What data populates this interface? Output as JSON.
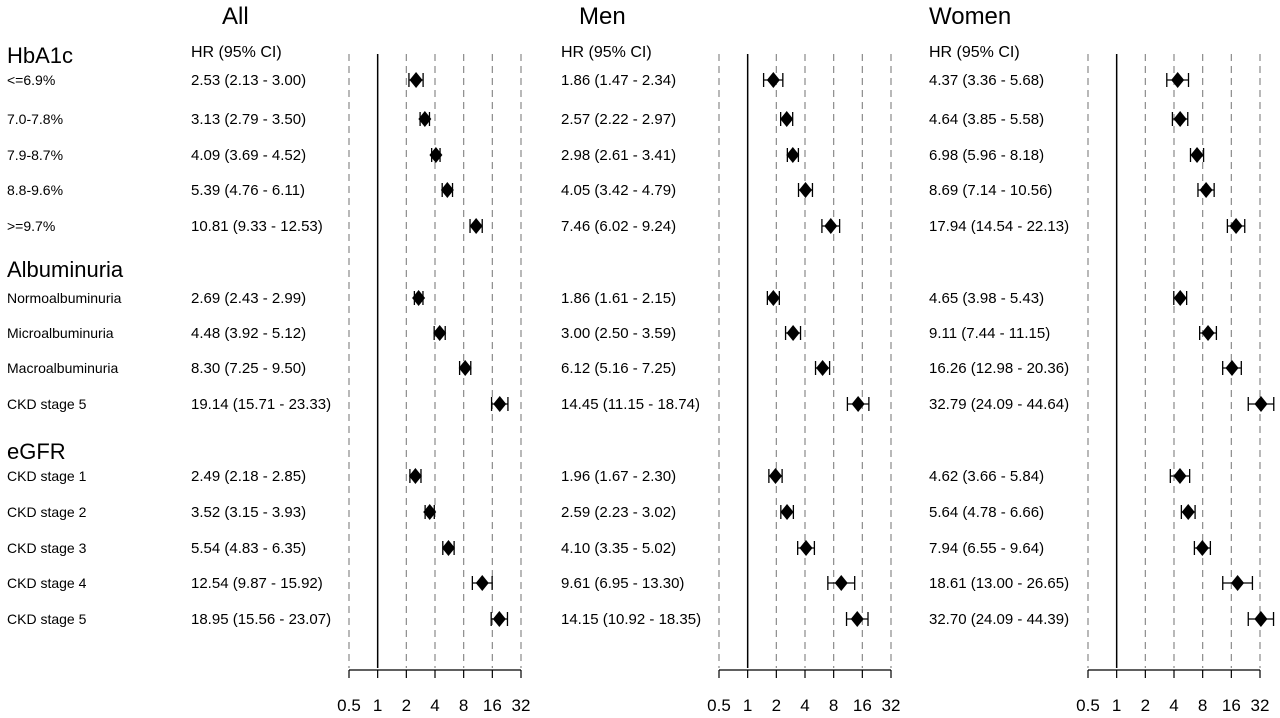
{
  "chart_data": {
    "type": "forest",
    "x_scale": "log2",
    "xlim": [
      0.5,
      32
    ],
    "reference_line": 1,
    "ticks": [
      0.5,
      1,
      2,
      4,
      8,
      16,
      32
    ],
    "tick_labels": [
      "0.5",
      "1",
      "2",
      "4",
      "8",
      "16",
      "32"
    ],
    "gridlines": [
      0.5,
      2,
      4,
      8,
      16,
      32
    ],
    "ci_header": "HR (95% CI)",
    "panels": [
      {
        "title": "All",
        "hr_text": [
          "2.53 (2.13 - 3.00)",
          "3.13 (2.79 - 3.50)",
          "4.09 (3.69 - 4.52)",
          "5.39 (4.76 - 6.11)",
          "10.81 (9.33 - 12.53)",
          "2.69 (2.43 - 2.99)",
          "4.48 (3.92 - 5.12)",
          "8.30 (7.25 - 9.50)",
          "19.14 (15.71 - 23.33)",
          "2.49 (2.18 - 2.85)",
          "3.52 (3.15 - 3.93)",
          "5.54 (4.83 - 6.35)",
          "12.54 (9.87 - 15.92)",
          "18.95 (15.56 - 23.07)"
        ],
        "hr": [
          2.53,
          3.13,
          4.09,
          5.39,
          10.81,
          2.69,
          4.48,
          8.3,
          19.14,
          2.49,
          3.52,
          5.54,
          12.54,
          18.95
        ],
        "lower": [
          2.13,
          2.79,
          3.69,
          4.76,
          9.33,
          2.43,
          3.92,
          7.25,
          15.71,
          2.18,
          3.15,
          4.83,
          9.87,
          15.56
        ],
        "upper": [
          3.0,
          3.5,
          4.52,
          6.11,
          12.53,
          2.99,
          5.12,
          9.5,
          23.33,
          2.85,
          3.93,
          6.35,
          15.92,
          23.07
        ]
      },
      {
        "title": "Men",
        "hr_text": [
          "1.86 (1.47 - 2.34)",
          "2.57 (2.22 - 2.97)",
          "2.98 (2.61 - 3.41)",
          "4.05 (3.42 - 4.79)",
          "7.46 (6.02 - 9.24)",
          "1.86 (1.61 - 2.15)",
          "3.00 (2.50 - 3.59)",
          "6.12 (5.16 - 7.25)",
          "14.45 (11.15 - 18.74)",
          "1.96 (1.67 - 2.30)",
          "2.59 (2.23 - 3.02)",
          "4.10 (3.35 - 5.02)",
          "9.61 (6.95 - 13.30)",
          "14.15 (10.92 - 18.35)"
        ],
        "hr": [
          1.86,
          2.57,
          2.98,
          4.05,
          7.46,
          1.86,
          3.0,
          6.12,
          14.45,
          1.96,
          2.59,
          4.1,
          9.61,
          14.15
        ],
        "lower": [
          1.47,
          2.22,
          2.61,
          3.42,
          6.02,
          1.61,
          2.5,
          5.16,
          11.15,
          1.67,
          2.23,
          3.35,
          6.95,
          10.92
        ],
        "upper": [
          2.34,
          2.97,
          3.41,
          4.79,
          9.24,
          2.15,
          3.59,
          7.25,
          18.74,
          2.3,
          3.02,
          5.02,
          13.3,
          18.35
        ]
      },
      {
        "title": "Women",
        "hr_text": [
          "4.37 (3.36 - 5.68)",
          "4.64 (3.85 - 5.58)",
          "6.98 (5.96 - 8.18)",
          "8.69 (7.14 - 10.56)",
          "17.94 (14.54 - 22.13)",
          "4.65 (3.98 - 5.43)",
          "9.11 (7.44 - 11.15)",
          "16.26 (12.98 - 20.36)",
          "32.79 (24.09 - 44.64)",
          "4.62 (3.66 - 5.84)",
          "5.64 (4.78 - 6.66)",
          "7.94 (6.55 - 9.64)",
          "18.61 (13.00 - 26.65)",
          "32.70 (24.09 - 44.39)"
        ],
        "hr": [
          4.37,
          4.64,
          6.98,
          8.69,
          17.94,
          4.65,
          9.11,
          16.26,
          32.79,
          4.62,
          5.64,
          7.94,
          18.61,
          32.7
        ],
        "lower": [
          3.36,
          3.85,
          5.96,
          7.14,
          14.54,
          3.98,
          7.44,
          12.98,
          24.09,
          3.66,
          4.78,
          6.55,
          13.0,
          24.09
        ],
        "upper": [
          5.68,
          5.58,
          8.18,
          10.56,
          22.13,
          5.43,
          11.15,
          20.36,
          44.64,
          5.84,
          6.66,
          9.64,
          26.65,
          44.39
        ]
      }
    ],
    "sections": [
      {
        "title": "HbA1c",
        "rows": [
          "<=6.9%",
          "7.0-7.8%",
          "7.9-8.7%",
          "8.8-9.6%",
          ">=9.7%"
        ]
      },
      {
        "title": "Albuminuria",
        "rows": [
          "Normoalbuminuria",
          "Microalbuminuria",
          "Macroalbuminuria",
          "CKD stage 5"
        ]
      },
      {
        "title": "eGFR",
        "rows": [
          "CKD stage 1",
          "CKD stage 2",
          "CKD stage 3",
          "CKD stage 4",
          "CKD stage 5"
        ]
      }
    ]
  }
}
